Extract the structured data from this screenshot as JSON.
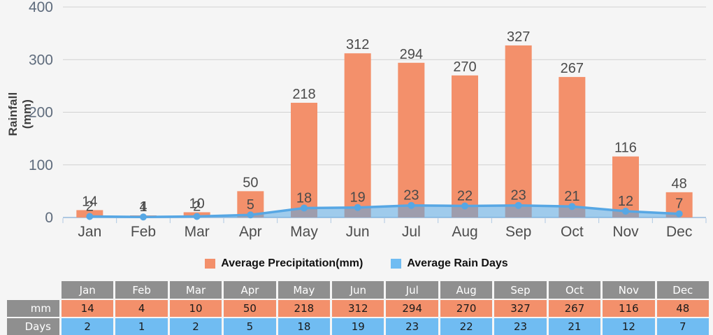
{
  "page": {
    "background": "#F5F5F5"
  },
  "chart_data": {
    "type": "bar",
    "categories": [
      "Jan",
      "Feb",
      "Mar",
      "Apr",
      "May",
      "Jun",
      "Jul",
      "Aug",
      "Sep",
      "Oct",
      "Nov",
      "Dec"
    ],
    "series": [
      {
        "name": "Average Precipitation(mm)",
        "type": "bar",
        "color": "#F3906B",
        "values": [
          14,
          4,
          10,
          50,
          218,
          312,
          294,
          270,
          327,
          267,
          116,
          48
        ]
      },
      {
        "name": "Average Rain Days",
        "type": "area",
        "color": "#70BCF2",
        "line_color": "#57A7E4",
        "values": [
          2,
          1,
          2,
          5,
          18,
          19,
          23,
          22,
          23,
          21,
          12,
          7
        ]
      }
    ],
    "title": "",
    "xlabel": "",
    "ylabel": "Rainfall (mm)",
    "ylim": [
      0,
      400
    ],
    "yticks": [
      0,
      100,
      200,
      300,
      400
    ],
    "grid": true,
    "data_labels": true,
    "legend_position": "bottom",
    "axis_color": "#AEC8E2",
    "gridline_color": "#D2D2D2",
    "tick_label_color": "#5E6B7C",
    "category_label_color": "#4D4D4D",
    "value_label_color": "#4A4A4A"
  },
  "table": {
    "corner_label": "",
    "columns": [
      "Jan",
      "Feb",
      "Mar",
      "Apr",
      "May",
      "Jun",
      "Jul",
      "Aug",
      "Sep",
      "Oct",
      "Nov",
      "Dec"
    ],
    "header_color": "#8F8F8F",
    "rows": [
      {
        "label": "mm",
        "color": "#F3906B",
        "values": [
          14,
          4,
          10,
          50,
          218,
          312,
          294,
          270,
          327,
          267,
          116,
          48
        ]
      },
      {
        "label": "Days",
        "color": "#70BCF2",
        "values": [
          2,
          1,
          2,
          5,
          18,
          19,
          23,
          22,
          23,
          21,
          12,
          7
        ]
      }
    ]
  }
}
